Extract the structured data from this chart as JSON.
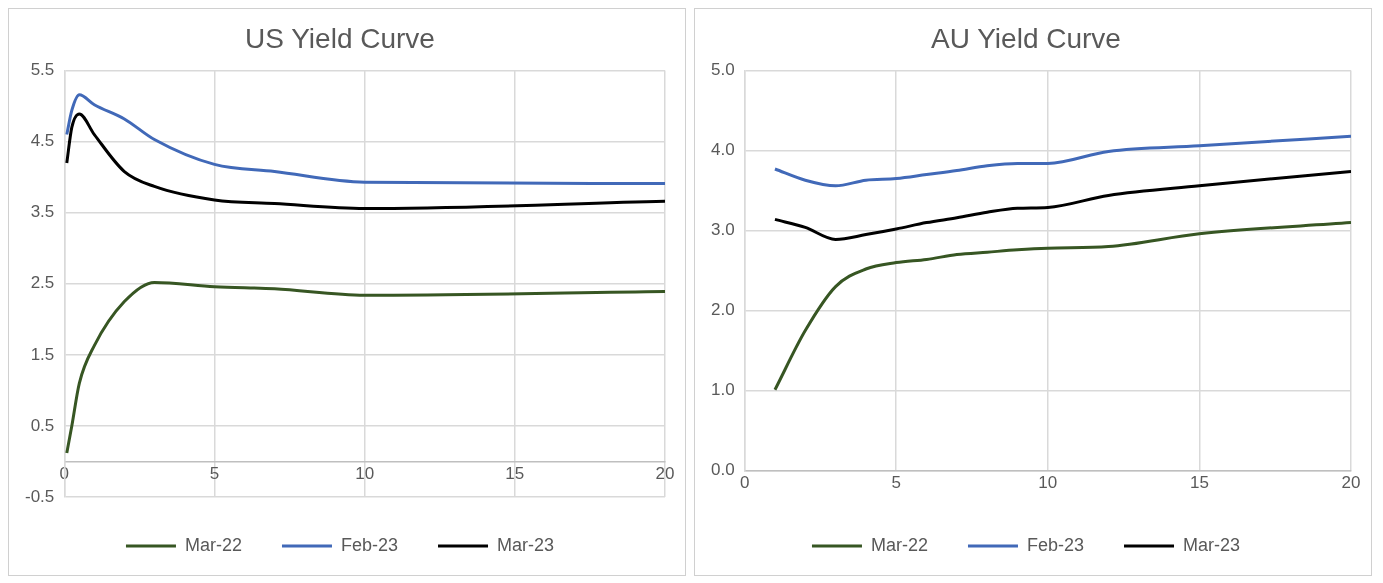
{
  "chart_data": [
    {
      "type": "line",
      "title": "US Yield Curve",
      "x": [
        0.083,
        0.25,
        0.5,
        1,
        2,
        3,
        5,
        7,
        10,
        20
      ],
      "xlim": [
        0,
        20
      ],
      "xticks": [
        0,
        5,
        10,
        15,
        20
      ],
      "ylim": [
        -0.5,
        5.5
      ],
      "yticks": [
        -0.5,
        0.5,
        1.5,
        2.5,
        3.5,
        4.5,
        5.5
      ],
      "grid": true,
      "legend": "bottom",
      "series": [
        {
          "name": "Mar-22",
          "color": "#375623",
          "values": [
            0.12,
            0.5,
            1.1,
            1.63,
            2.25,
            2.52,
            2.46,
            2.43,
            2.34,
            2.39
          ]
        },
        {
          "name": "Feb-23",
          "color": "#4169b8",
          "values": [
            4.6,
            4.94,
            5.16,
            5.02,
            4.82,
            4.53,
            4.18,
            4.08,
            3.93,
            3.91
          ]
        },
        {
          "name": "Mar-23",
          "color": "#000000",
          "values": [
            4.2,
            4.7,
            4.89,
            4.6,
            4.08,
            3.87,
            3.68,
            3.63,
            3.56,
            3.66
          ]
        }
      ]
    },
    {
      "type": "line",
      "title": "AU Yield Curve",
      "x": [
        1,
        2,
        3,
        4,
        5,
        6,
        7,
        8,
        9,
        10,
        12,
        15,
        20
      ],
      "xlim": [
        0,
        20
      ],
      "xticks": [
        0,
        5,
        10,
        15,
        20
      ],
      "ylim": [
        0,
        5
      ],
      "yticks": [
        {
          "value": 0,
          "label": "0.0"
        },
        {
          "value": 1,
          "label": "1.0"
        },
        {
          "value": 2,
          "label": "2.0"
        },
        {
          "value": 3,
          "label": "3.0"
        },
        {
          "value": 4,
          "label": "4.0"
        },
        {
          "value": 5,
          "label": "5.0"
        }
      ],
      "grid": true,
      "legend": "bottom",
      "series": [
        {
          "name": "Mar-22",
          "color": "#375623",
          "values": [
            1.01,
            1.75,
            2.3,
            2.52,
            2.6,
            2.64,
            2.7,
            2.73,
            2.76,
            2.78,
            2.8,
            2.96,
            3.1
          ]
        },
        {
          "name": "Feb-23",
          "color": "#4169b8",
          "values": [
            3.77,
            3.63,
            3.56,
            3.63,
            3.65,
            3.7,
            3.75,
            3.81,
            3.84,
            3.84,
            3.99,
            4.06,
            4.18
          ]
        },
        {
          "name": "Mar-23",
          "color": "#000000",
          "values": [
            3.14,
            3.04,
            2.89,
            2.95,
            3.02,
            3.1,
            3.16,
            3.23,
            3.28,
            3.29,
            3.44,
            3.56,
            3.74
          ]
        }
      ]
    }
  ]
}
